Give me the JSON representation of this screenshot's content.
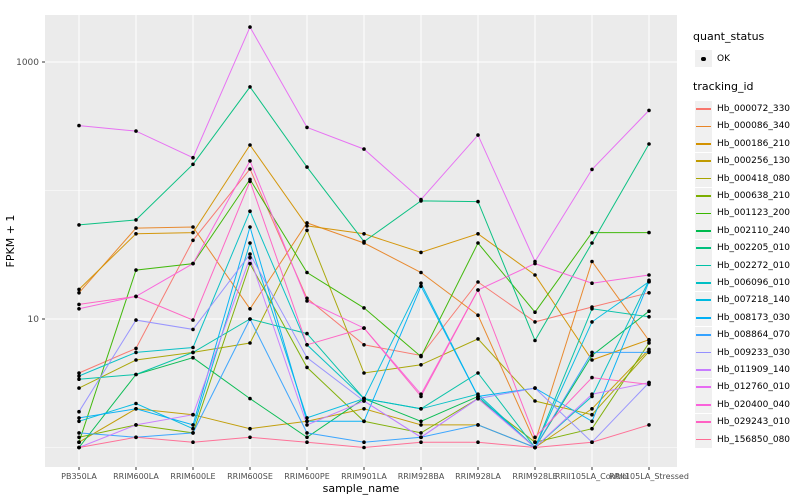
{
  "legend": {
    "quant_status_title": "quant_status",
    "quant_status_items": [
      "OK"
    ],
    "tracking_id_title": "tracking_id"
  },
  "colors": {
    "panel_bg": "#EBEBEB",
    "gridline": "#FFFFFF",
    "tick_text": "#4D4D4D",
    "axis_title_text": "#000000",
    "tick_mark": "#333333",
    "point": "#000000",
    "legend_key_bg": "#F0F0F0"
  },
  "chart_data": {
    "type": "line",
    "title": "",
    "xlabel": "sample_name",
    "ylabel": "FPKM + 1",
    "y_scale": "log10",
    "ylim": [
      0.7,
      2300
    ],
    "grid": "major+minor, white on gray panel",
    "legend_position": "right",
    "y_ticks": [
      {
        "value": 10,
        "label": "10"
      },
      {
        "value": 1000,
        "label": "1000"
      }
    ],
    "y_minor_gridlines": [
      1,
      100
    ],
    "point_shape": "filled black circle (quant_status = OK)",
    "categories": [
      "PB350LA",
      "RRIM600LA",
      "RRIM600LE",
      "RRIM600SE",
      "RRIM600PE",
      "RRIM901LA",
      "RRIM928BA",
      "RRIM928LA",
      "RRIM928LE",
      "RRII105LA_Control",
      "RRII105LA_Stressed"
    ],
    "series": [
      {
        "name": "Hb_000072_330",
        "color": "#F8766D",
        "values": [
          3.8,
          5.9,
          41,
          147,
          14.5,
          6.3,
          5.2,
          19.4,
          9.5,
          12.4,
          16
        ]
      },
      {
        "name": "Hb_000086_340",
        "color": "#E88526",
        "values": [
          16,
          51,
          52,
          12,
          56,
          39,
          23,
          10.7,
          1.1,
          28,
          6.8
        ]
      },
      {
        "name": "Hb_000186_210",
        "color": "#D39200",
        "values": [
          17,
          46,
          47,
          226,
          53,
          46,
          33,
          46,
          22,
          4.8,
          6.9
        ]
      },
      {
        "name": "Hb_000256_130",
        "color": "#C09B00",
        "values": [
          1.1,
          2.0,
          1.8,
          1.4,
          1.6,
          2.0,
          1.5,
          1.5,
          1.0,
          2.0,
          5.8
        ]
      },
      {
        "name": "Hb_000418_080",
        "color": "#A8A400",
        "values": [
          2.9,
          4.8,
          5.5,
          6.5,
          49,
          3.8,
          4.4,
          7.0,
          2.3,
          1.8,
          5.6
        ]
      },
      {
        "name": "Hb_000638_210",
        "color": "#7CAE00",
        "values": [
          1.2,
          1.5,
          1.3,
          27,
          4.2,
          1.6,
          1.3,
          2.4,
          1.1,
          1.4,
          6.5
        ]
      },
      {
        "name": "Hb_001123_200",
        "color": "#39B600",
        "values": [
          1.1,
          24,
          27,
          122,
          23,
          12.2,
          5.1,
          39,
          11.3,
          47,
          47
        ]
      },
      {
        "name": "Hb_002110_240",
        "color": "#00BB4E",
        "values": [
          1.0,
          3.7,
          5.0,
          2.4,
          1.2,
          2.4,
          1.6,
          2.5,
          1.0,
          5.2,
          11.5
        ]
      },
      {
        "name": "Hb_002205_010",
        "color": "#00BF7D",
        "values": [
          54,
          59,
          160,
          640,
          152,
          40,
          83,
          82,
          6.8,
          39,
          230
        ]
      },
      {
        "name": "Hb_002272_010",
        "color": "#00C1A7",
        "values": [
          3.4,
          3.7,
          5.5,
          10,
          7.7,
          2.4,
          2.0,
          3.8,
          1.0,
          12,
          10.4
        ]
      },
      {
        "name": "Hb_006096_010",
        "color": "#00BFC4",
        "values": [
          3.6,
          5.5,
          6.0,
          69,
          6.3,
          2.4,
          2.0,
          2.6,
          1.0,
          2.5,
          20
        ]
      },
      {
        "name": "Hb_007218_140",
        "color": "#00BAE0",
        "values": [
          1.6,
          2.2,
          1.4,
          39,
          1.7,
          2.4,
          19,
          2.5,
          1.0,
          9.5,
          19.5
        ]
      },
      {
        "name": "Hb_008173_030",
        "color": "#00B0F6",
        "values": [
          1.7,
          2.0,
          1.5,
          52,
          1.6,
          1.6,
          18,
          2.5,
          2.9,
          1.6,
          19.5
        ]
      },
      {
        "name": "Hb_008864_070",
        "color": "#35A2FF",
        "values": [
          1.3,
          1.2,
          1.3,
          10,
          1.3,
          1.1,
          1.2,
          1.5,
          1.0,
          5.5,
          5.5
        ]
      },
      {
        "name": "Hb_009233_030",
        "color": "#9590FF",
        "values": [
          1.9,
          9.8,
          8.3,
          32,
          5.0,
          2.3,
          1.2,
          2.4,
          2.9,
          1.1,
          3.2
        ]
      },
      {
        "name": "Hb_011909_140",
        "color": "#C77CFF",
        "values": [
          1.0,
          1.5,
          1.8,
          30,
          1.5,
          2.3,
          1.2,
          2.4,
          1.0,
          2.6,
          3.2
        ]
      },
      {
        "name": "Hb_012760_010",
        "color": "#E76BF3",
        "values": [
          320,
          290,
          180,
          1870,
          310,
          210,
          85,
          270,
          28,
          146,
          420
        ]
      },
      {
        "name": "Hb_020400_040",
        "color": "#FA62DB",
        "values": [
          12,
          15,
          27,
          170,
          13.8,
          8.5,
          2.6,
          16.8,
          27,
          19,
          22
        ]
      },
      {
        "name": "Hb_029243_010",
        "color": "#FF61C3",
        "values": [
          13,
          15,
          9.8,
          118,
          6.3,
          8.5,
          2.5,
          16.8,
          1.2,
          3.5,
          3.1
        ]
      },
      {
        "name": "Hb_156850_080",
        "color": "#FF6B94",
        "values": [
          1.0,
          1.2,
          1.1,
          1.2,
          1.1,
          1.0,
          1.1,
          1.1,
          1.0,
          1.1,
          1.5
        ]
      }
    ]
  }
}
